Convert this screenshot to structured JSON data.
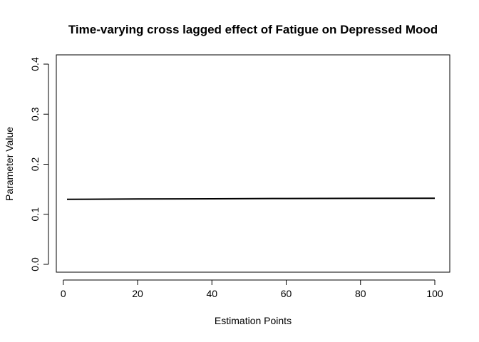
{
  "chart_data": {
    "type": "line",
    "title": "Time-varying cross lagged effect of Fatigue on Depressed Mood",
    "xlabel": "Estimation Points",
    "ylabel": "Parameter Value",
    "xlim": [
      1,
      100
    ],
    "ylim": [
      0.0,
      0.4
    ],
    "xticks": [
      0,
      20,
      40,
      60,
      80,
      100
    ],
    "yticks": [
      0.0,
      0.1,
      0.2,
      0.3,
      0.4
    ],
    "xtick_labels": [
      "0",
      "20",
      "40",
      "60",
      "80",
      "100"
    ],
    "ytick_labels": [
      "0.0",
      "0.1",
      "0.2",
      "0.3",
      "0.4"
    ],
    "grid": false,
    "series": [
      {
        "color": "#000000",
        "x": [
          1,
          20,
          40,
          60,
          80,
          100
        ],
        "y": [
          0.13,
          0.1305,
          0.131,
          0.1315,
          0.1318,
          0.132
        ]
      }
    ]
  }
}
